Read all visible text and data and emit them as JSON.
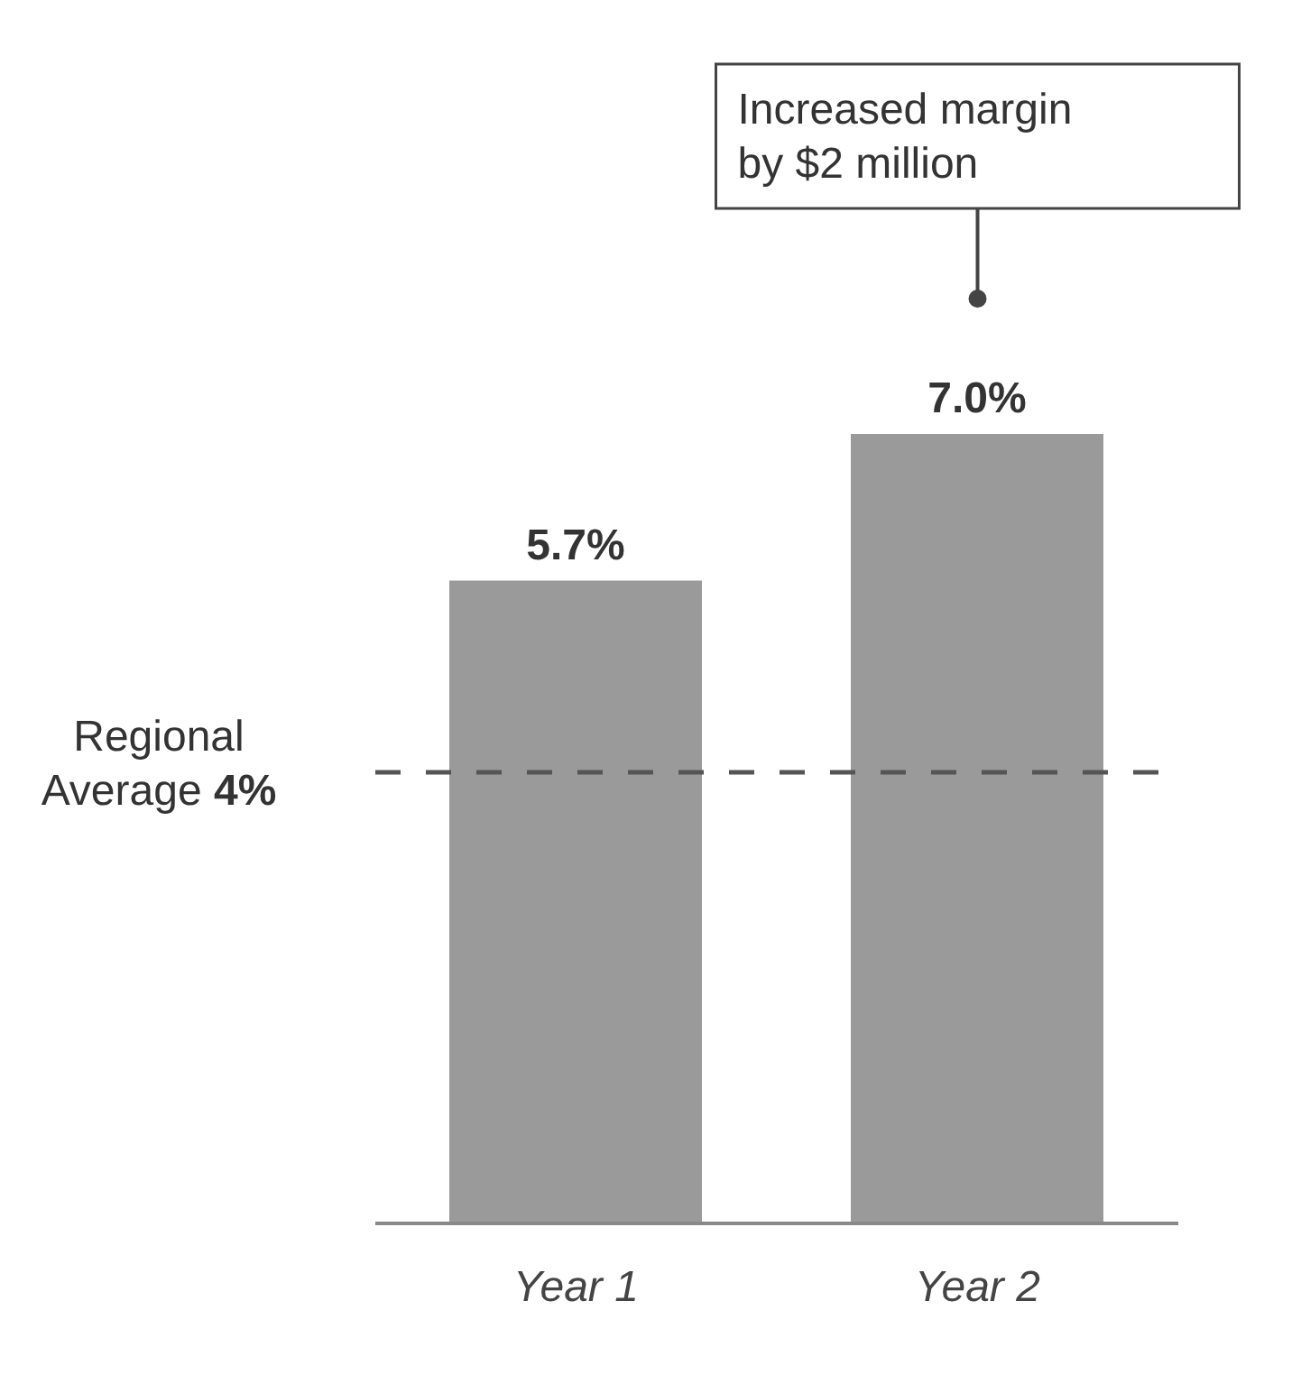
{
  "chart_data": {
    "type": "bar",
    "categories": [
      "Year 1",
      "Year 2"
    ],
    "values": [
      5.7,
      7.0
    ],
    "value_labels": [
      "5.7%",
      "7.0%"
    ],
    "color": "#9a9a9a",
    "tick_labels": "x",
    "grid": false,
    "legend": false,
    "ref_lines": [
      {
        "axis": "y",
        "value": 4,
        "label": "Regional Average 4%",
        "color": "#555555",
        "line_style": "dashed"
      }
    ],
    "annotations": [
      "Increased margin by $2 million"
    ]
  }
}
